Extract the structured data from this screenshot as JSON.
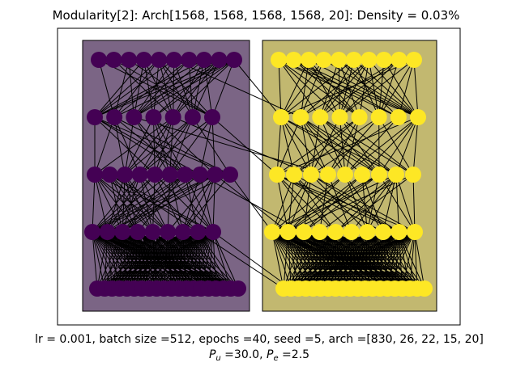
{
  "title": "Modularity[2]: Arch[1568, 1568, 1568, 1568, 20]: Density = 0.03%",
  "caption": {
    "line1": "lr =  0.001, batch size =512, epochs =40, seed =5, arch =[830, 26, 22, 15, 20]",
    "line2": "P_u =30.0, P_e =2.5",
    "line2_parts": {
      "p_u_symbol": "P",
      "p_u_sub": "u",
      "p_u_value": " =30.0, ",
      "p_e_symbol": "P",
      "p_e_sub": "e",
      "p_e_value": " =2.5"
    }
  },
  "colors": {
    "module_left_node": "#440154",
    "module_left_box": "#7b6585",
    "module_right_node": "#fde725",
    "module_right_box": "#c2b870",
    "edge": "#000000",
    "frame": "#000000"
  },
  "modules": [
    {
      "name": "module-0",
      "layer_node_counts": [
        10,
        7,
        10,
        9,
        20
      ]
    },
    {
      "name": "module-1",
      "layer_node_counts": [
        10,
        8,
        9,
        10,
        20
      ]
    }
  ]
}
